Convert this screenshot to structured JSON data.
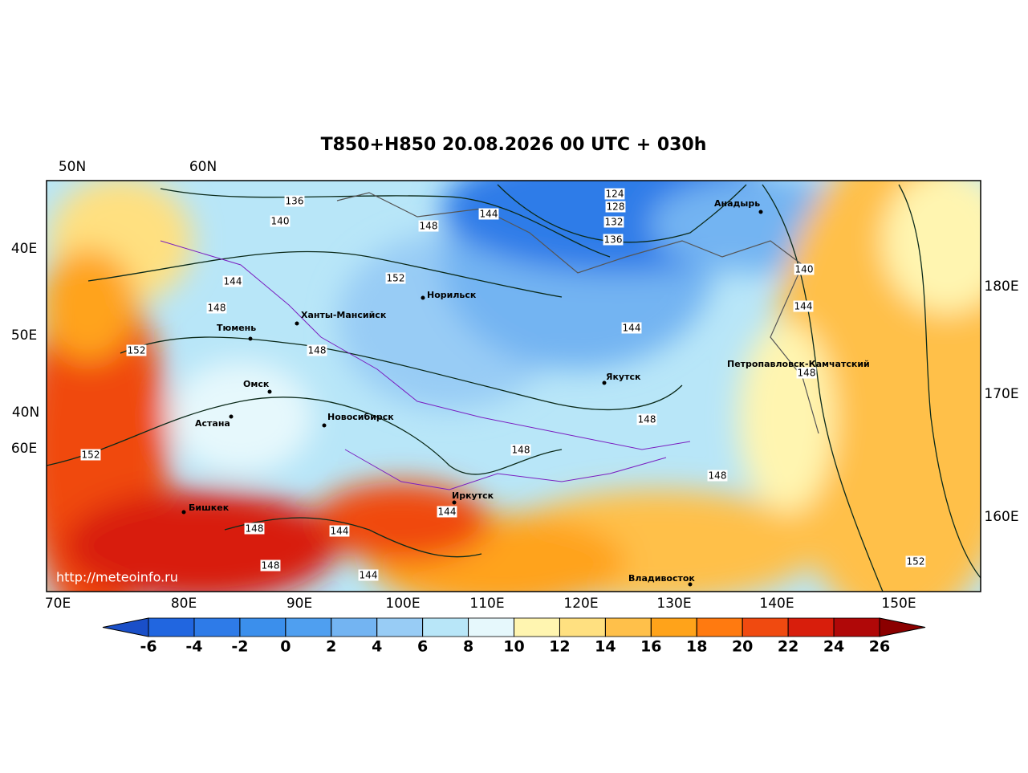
{
  "title": "T850+H850 20.08.2026 00 UTC + 030h",
  "lat_lon_labels": {
    "top": [
      "50N",
      "60N"
    ],
    "left": [
      "40E",
      "50E",
      "40N",
      "60E"
    ],
    "right": [
      "180E",
      "170E",
      "160E"
    ],
    "bottom": [
      "70E",
      "80E",
      "90E",
      "100E",
      "110E",
      "120E",
      "130E",
      "140E",
      "150E"
    ]
  },
  "cities": [
    "Анадырь",
    "Норильск",
    "Ханты-Мансийск",
    "Тюмень",
    "Якутск",
    "Петропавловск-Камчатский",
    "Омск",
    "Новосибирск",
    "Астана",
    "Иркутск",
    "Бишкек",
    "Владивосток"
  ],
  "contour_labels": [
    136,
    140,
    148,
    144,
    124,
    128,
    132,
    136,
    152,
    144,
    148,
    152,
    148,
    144,
    140,
    144,
    148,
    148,
    148,
    148,
    152,
    148,
    144,
    144,
    148,
    144,
    152
  ],
  "watermark": "http://meteoinfo.ru",
  "colorbar": {
    "ticks": [
      -6,
      -4,
      -2,
      0,
      2,
      4,
      6,
      8,
      10,
      12,
      14,
      16,
      18,
      20,
      22,
      24,
      26
    ],
    "colors": [
      "#2166e0",
      "#2e7be8",
      "#3b8fec",
      "#4f9ff0",
      "#73b4f2",
      "#98ccf5",
      "#b8e6f8",
      "#e6f8fc",
      "#fff5b0",
      "#ffe080",
      "#ffc04a",
      "#ffa31a",
      "#ff7a10",
      "#f04a10",
      "#d81e0c",
      "#b00808"
    ],
    "under_color": "#1a4fc8",
    "over_color": "#8b0000"
  }
}
